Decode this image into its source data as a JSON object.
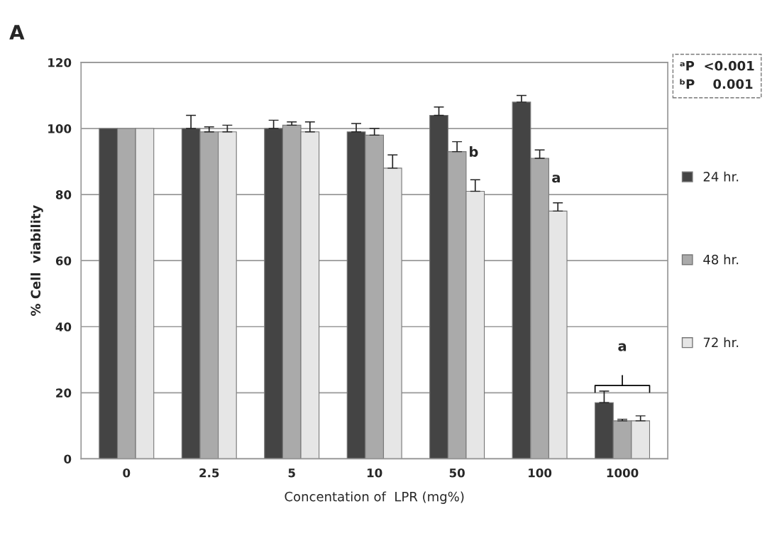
{
  "chart_data": {
    "type": "bar",
    "title": "A",
    "xlabel": "Concentation of  LPR (mg%)",
    "ylabel": "% Cell  viability",
    "categories": [
      "0",
      "2.5",
      "5",
      "10",
      "50",
      "100",
      "1000"
    ],
    "series": [
      {
        "name": "24 hr.",
        "color": "#444444",
        "values": [
          100,
          100,
          100,
          99,
          104,
          108,
          17
        ],
        "errors": [
          null,
          4,
          2.5,
          2.5,
          2.5,
          2,
          3.5
        ]
      },
      {
        "name": "48 hr.",
        "color": "#aaaaaa",
        "values": [
          100,
          99,
          101,
          98,
          93,
          91,
          11.5
        ],
        "errors": [
          null,
          1.5,
          1,
          2,
          3,
          2.5,
          0.5
        ]
      },
      {
        "name": "72 hr.",
        "color": "#e6e6e6",
        "values": [
          100,
          99,
          99,
          88,
          81,
          75,
          11.5
        ],
        "errors": [
          null,
          2,
          3,
          4,
          3.5,
          2.5,
          1.5
        ]
      }
    ],
    "ylim": [
      0,
      120
    ],
    "yticks": [
      0,
      20,
      40,
      60,
      80,
      100,
      120
    ],
    "grid": "y",
    "legend": "right",
    "annotations": [
      "b",
      "a",
      "a",
      "ᵃP  <0.001\nᵇP    0.001"
    ]
  }
}
